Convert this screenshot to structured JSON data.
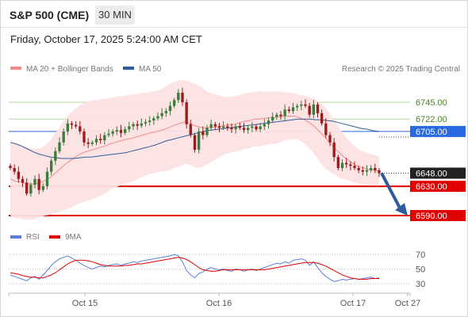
{
  "header": {
    "title": "S&P 500 (CME)",
    "timeframe": "30 MIN",
    "timestamp": "Friday, October 17, 2025 5:24:00 AM CET"
  },
  "legend": {
    "ma20_label": "MA 20 + Bollinger Bands",
    "ma50_label": "MA 50",
    "copyright": "Research © 2025 Trading Central"
  },
  "rsi_legend": {
    "rsi_label": "RSI",
    "ma_label": "9MA"
  },
  "colors": {
    "up": "#3b7d3b",
    "down": "#9b1c1c",
    "ma20": "#f08c8c",
    "bollinger_fill": "#fde3e3",
    "ma50": "#2f5b9c",
    "support": "#e00000",
    "pivot": "#2a6ae0",
    "resistance": "#b5d99c",
    "rsi": "#5b7fd9",
    "rsi_ma": "#e00000",
    "last_price_bg": "#222222",
    "arrow": "#2f5b9c"
  },
  "chart_data": [
    {
      "type": "line",
      "name": "price",
      "y_range": [
        6580,
        6780
      ],
      "x_ticks": [
        "Oct 15",
        "Oct 16",
        "Oct 17",
        "Oct 27"
      ],
      "levels": [
        {
          "price": 6745.0,
          "label": "6745.00",
          "kind": "resistance"
        },
        {
          "price": 6722.0,
          "label": "6722.00",
          "kind": "resistance"
        },
        {
          "price": 6705.0,
          "label": "6705.00",
          "kind": "pivot"
        },
        {
          "price": 6648.0,
          "label": "6648.00",
          "kind": "last"
        },
        {
          "price": 6630.0,
          "label": "6630.00",
          "kind": "support"
        },
        {
          "price": 6590.0,
          "label": "6590.00",
          "kind": "support"
        }
      ],
      "close": [
        6655,
        6650,
        6640,
        6635,
        6620,
        6632,
        6640,
        6625,
        6630,
        6650,
        6665,
        6678,
        6690,
        6705,
        6716,
        6714,
        6712,
        6705,
        6690,
        6688,
        6690,
        6695,
        6693,
        6700,
        6702,
        6705,
        6707,
        6703,
        6708,
        6712,
        6715,
        6713,
        6716,
        6718,
        6720,
        6723,
        6726,
        6730,
        6733,
        6740,
        6748,
        6758,
        6745,
        6715,
        6700,
        6680,
        6705,
        6700,
        6710,
        6715,
        6712,
        6710,
        6712,
        6710,
        6708,
        6712,
        6710,
        6707,
        6710,
        6712,
        6708,
        6712,
        6715,
        6720,
        6725,
        6728,
        6726,
        6735,
        6733,
        6738,
        6740,
        6742,
        6740,
        6728,
        6742,
        6730,
        6716,
        6700,
        6690,
        6670,
        6655,
        6662,
        6660,
        6658,
        6655,
        6652,
        6650,
        6652,
        6655,
        6652,
        6648
      ],
      "ma20": [
        6640,
        6637,
        6636,
        6634,
        6633,
        6633,
        6635,
        6638,
        6642,
        6648,
        6654,
        6660,
        6665,
        6670,
        6674,
        6677,
        6679,
        6681,
        6683,
        6685,
        6688,
        6690,
        6692,
        6694,
        6695,
        6697,
        6699,
        6701,
        6703,
        6704,
        6706,
        6708,
        6711,
        6714,
        6716,
        6718,
        6716,
        6713,
        6711,
        6710,
        6710,
        6711,
        6712,
        6713,
        6714,
        6715,
        6717,
        6719,
        6720,
        6722,
        6722,
        6723,
        6724,
        6724,
        6725,
        6726,
        6726,
        6726,
        6724,
        6721,
        6717,
        6712,
        6705,
        6698,
        6690,
        6683,
        6676,
        6670,
        6665,
        6660,
        6657,
        6655,
        6653,
        6652,
        6651
      ],
      "bb_upper": [
        6690,
        6688,
        6686,
        6684,
        6682,
        6681,
        6682,
        6686,
        6693,
        6703,
        6712,
        6722,
        6730,
        6736,
        6741,
        6745,
        6747,
        6748,
        6749,
        6750,
        6751,
        6752,
        6753,
        6754,
        6755,
        6756,
        6757,
        6758,
        6759,
        6760,
        6762,
        6766,
        6770,
        6773,
        6775,
        6775,
        6773,
        6770,
        6767,
        6762,
        6758,
        6756,
        6754,
        6752,
        6752,
        6753,
        6755,
        6757,
        6758,
        6759,
        6760,
        6760,
        6760,
        6760,
        6760,
        6759,
        6758,
        6757,
        6755,
        6754,
        6752,
        6750,
        6746,
        6740,
        6730,
        6720,
        6710,
        6700,
        6692,
        6685,
        6680,
        6677,
        6675,
        6673,
        6671
      ],
      "bb_lower": [
        6590,
        6586,
        6586,
        6584,
        6584,
        6585,
        6588,
        6590,
        6591,
        6593,
        6596,
        6598,
        6600,
        6604,
        6607,
        6609,
        6611,
        6614,
        6617,
        6620,
        6625,
        6628,
        6631,
        6634,
        6635,
        6638,
        6641,
        6644,
        6647,
        6648,
        6650,
        6650,
        6652,
        6655,
        6657,
        6661,
        6659,
        6656,
        6655,
        6658,
        6662,
        6666,
        6670,
        6674,
        6676,
        6677,
        6679,
        6681,
        6682,
        6685,
        6684,
        6686,
        6688,
        6688,
        6690,
        6693,
        6694,
        6695,
        6693,
        6688,
        6682,
        6674,
        6664,
        6656,
        6650,
        6646,
        6642,
        6640,
        6638,
        6635,
        6634,
        6633,
        6631,
        6631,
        6631
      ],
      "ma50": [
        6690,
        6688,
        6685,
        6681,
        6677,
        6674,
        6672,
        6670,
        6669,
        6668,
        6668,
        6668,
        6669,
        6670,
        6670,
        6671,
        6672,
        6673,
        6674,
        6675,
        6676,
        6678,
        6680,
        6682,
        6684,
        6686,
        6689,
        6692,
        6694,
        6696,
        6698,
        6700,
        6702,
        6704,
        6706,
        6707,
        6708,
        6709,
        6710,
        6711,
        6712,
        6713,
        6714,
        6715,
        6716,
        6717,
        6718,
        6719,
        6720,
        6721,
        6722,
        6722,
        6722,
        6721,
        6721,
        6720,
        6719,
        6717,
        6715,
        6713,
        6711,
        6709,
        6708,
        6706,
        6705
      ]
    },
    {
      "type": "line",
      "name": "rsi",
      "y_range": [
        25,
        75
      ],
      "y_ticks": [
        "70",
        "50",
        "30"
      ],
      "rsi": [
        42,
        40,
        38,
        36,
        34,
        38,
        40,
        36,
        42,
        48,
        55,
        60,
        64,
        66,
        68,
        65,
        62,
        58,
        55,
        52,
        50,
        52,
        54,
        53,
        55,
        56,
        57,
        55,
        57,
        58,
        60,
        59,
        61,
        62,
        63,
        64,
        65,
        66,
        67,
        68,
        70,
        68,
        60,
        48,
        42,
        38,
        44,
        46,
        50,
        52,
        50,
        49,
        50,
        48,
        47,
        50,
        49,
        47,
        49,
        50,
        48,
        50,
        52,
        54,
        56,
        58,
        57,
        60,
        58,
        62,
        63,
        64,
        62,
        55,
        60,
        52,
        45,
        40,
        36,
        33,
        34,
        36,
        35,
        36,
        37,
        36,
        37,
        38,
        39,
        37,
        38
      ],
      "rsi_ma": [
        45,
        44,
        43,
        41,
        40,
        39,
        39,
        38,
        38,
        40,
        42,
        45,
        49,
        53,
        57,
        60,
        62,
        62,
        62,
        61,
        60,
        58,
        56,
        55,
        54,
        54,
        54,
        54,
        55,
        55,
        56,
        57,
        57,
        58,
        59,
        60,
        61,
        62,
        63,
        64,
        65,
        66,
        65,
        63,
        60,
        56,
        52,
        49,
        48,
        47,
        47,
        48,
        49,
        49,
        49,
        49,
        49,
        49,
        49,
        49,
        49,
        49,
        49,
        50,
        51,
        52,
        53,
        54,
        55,
        56,
        57,
        58,
        59,
        59,
        59,
        58,
        56,
        54,
        51,
        48,
        45,
        42,
        40,
        38,
        37,
        36,
        36,
        36,
        37,
        37,
        37
      ]
    }
  ]
}
